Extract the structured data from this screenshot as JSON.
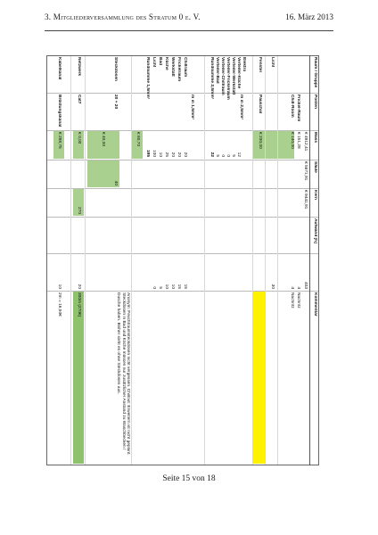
{
  "header": {
    "section": "3. Mitgliederversammlung des Stratum 0 e. V.",
    "date": "16. März 2013"
  },
  "footer": {
    "page": "Seite 15 von 18"
  },
  "table": {
    "columns": {
      "raum": "Raum / Gruppe",
      "posten": "Posten",
      "mass": "Mass",
      "saeule": "Säule",
      "kern": "Kern",
      "aufwand": "Aufwand [h]",
      "kommentar": "Kommentar"
    },
    "header_values": {
      "mass": "€ 4912,41",
      "saeule": "€ 5671,91",
      "kern": "€ 9441,91",
      "aufwand": "403"
    },
    "rows": [
      {
        "posten": "Frickel-Raum",
        "mass": "€ 151,28",
        "aufwand": "4",
        "kommentar": "Nachritz"
      },
      {
        "posten": "Chill-Room",
        "mass": "€ 140,00",
        "aufwand": "4",
        "kommentar": "Nachritz"
      },
      {
        "raum": "Licht",
        "aufwand": "30"
      },
      {
        "raum": "Fenster",
        "posten": "Pauschal",
        "mass": "€ 200,00"
      },
      {
        "raum": "Elektro",
        "posten": "m in 2,5mm²"
      },
      {
        "raum": "Verteiler-Küche",
        "mass": "12"
      },
      {
        "raum": "Verteiler-Werkstatt",
        "mass": "5"
      },
      {
        "raum": "Verteiler-Frickelraum",
        "mass": "0"
      },
      {
        "raum": "Verteiler-Chillraum",
        "mass": "0"
      },
      {
        "raum": "Verteiler-Bad",
        "mass": "5"
      },
      {
        "raum": "Rundsumme 2,5mm²",
        "mass": "22"
      },
      {
        "posten": "m in 1,5mm²"
      },
      {
        "raum": "Chillraum",
        "mass": "20",
        "aufwand": "15"
      },
      {
        "raum": "Frickelraum",
        "mass": "20",
        "aufwand": "15"
      },
      {
        "raum": "Werkstatt",
        "mass": "20",
        "aufwand": "10"
      },
      {
        "raum": "Küche",
        "mass": "25",
        "aufwand": "10"
      },
      {
        "raum": "Bad",
        "mass": "10",
        "aufwand": "5"
      },
      {
        "raum": "Licht",
        "mass": "100",
        "aufwand": "0"
      },
      {
        "raum": "Rundsumme 1,5mm²",
        "mass": "195",
        "mass2": "€ 80,70"
      },
      {
        "raum": "Steckdosen",
        "posten": "20 + 20",
        "mass": "€ 40,00",
        "saeule": "40",
        "kommentar": "Anonym: Feuchtraumsteckdosen nicht vergessen. Chillout: Erweitern ist nicht geplant. Steckdosen in Bad und Küche müssen nur zusätzlicher Anstand zu Waschbecken / Dusche haben. Bisher sieht es ohne Steckdosen aus."
      },
      {
        "raum": "Netzwerk",
        "posten": "Cat7",
        "mass": "€ 0,00",
        "kern": "270",
        "aufwand": "20",
        "kommentar": "300m (270€)"
      },
      {
        "raum": "Kabelkanal",
        "posten": "Brüstungskanal",
        "mass": "€ 288,75",
        "aufwand": "10",
        "kommentar": "2m = 16,50€"
      }
    ]
  },
  "colors": {
    "light_green": "#a9d08e",
    "green": "#8fc26d",
    "yellow": "#fff200"
  }
}
